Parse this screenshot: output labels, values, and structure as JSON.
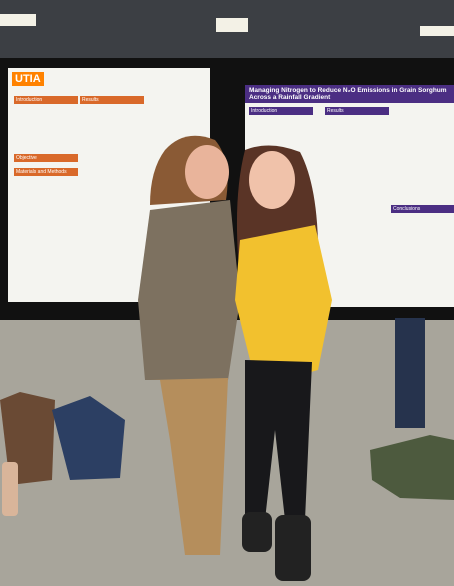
{
  "left_poster": {
    "logo": "UTIA",
    "sections": [
      "Introduction",
      "Results",
      "Objective",
      "Materials and Methods"
    ]
  },
  "right_poster": {
    "title": "Managing Nitrogen to Reduce N₂O Emissions in Grain Sorghum Across a Rainfall Gradient",
    "sections": [
      "Introduction",
      "Results",
      "Conclusions"
    ]
  }
}
